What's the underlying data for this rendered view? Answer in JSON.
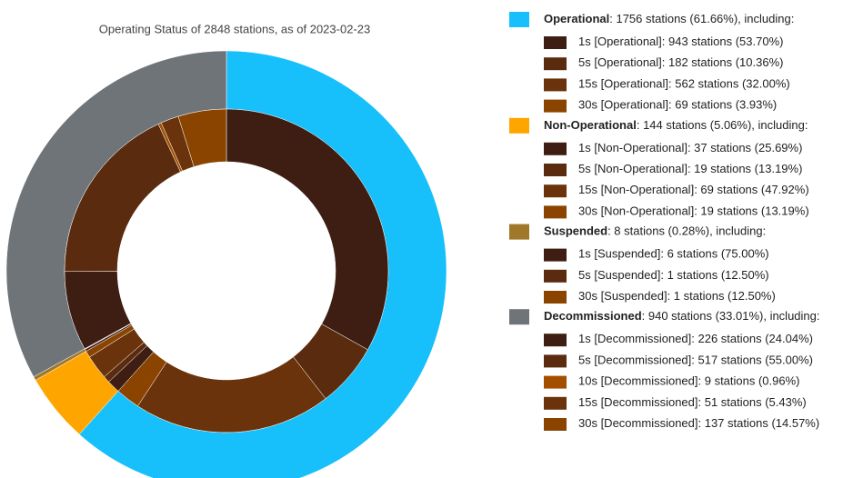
{
  "chart_data": {
    "type": "nested-donut",
    "title": "Operating Status of 2848 stations, as of 2023-02-23",
    "groups": [
      {
        "name": "Operational",
        "color": "#17bffb",
        "value": 1756,
        "label": ": 1756 stations (61.66%), including:",
        "children": [
          {
            "name": "1s [Operational]",
            "color": "#3e1e12",
            "value": 943,
            "label": ": 943 stations (53.70%)"
          },
          {
            "name": "5s [Operational]",
            "color": "#5a2b0e",
            "value": 182,
            "label": ": 182 stations (10.36%)"
          },
          {
            "name": "15s [Operational]",
            "color": "#6a330b",
            "value": 562,
            "label": ": 562 stations (32.00%)"
          },
          {
            "name": "30s [Operational]",
            "color": "#8a4400",
            "value": 69,
            "label": ": 69 stations (3.93%)"
          }
        ]
      },
      {
        "name": "Non-Operational",
        "color": "#ffa500",
        "value": 144,
        "label": ": 144 stations (5.06%), including:",
        "children": [
          {
            "name": "1s [Non-Operational]",
            "color": "#3e1e12",
            "value": 37,
            "label": ": 37 stations (25.69%)"
          },
          {
            "name": "5s [Non-Operational]",
            "color": "#5a2b0e",
            "value": 19,
            "label": ": 19 stations (13.19%)"
          },
          {
            "name": "15s [Non-Operational]",
            "color": "#6a330b",
            "value": 69,
            "label": ": 69 stations (47.92%)"
          },
          {
            "name": "30s [Non-Operational]",
            "color": "#8a4400",
            "value": 19,
            "label": ": 19 stations (13.19%)"
          }
        ]
      },
      {
        "name": "Suspended",
        "color": "#a0782a",
        "value": 8,
        "label": ": 8 stations (0.28%), including:",
        "children": [
          {
            "name": "1s [Suspended]",
            "color": "#3e1e12",
            "value": 6,
            "label": ": 6 stations (75.00%)"
          },
          {
            "name": "5s [Suspended]",
            "color": "#5a2b0e",
            "value": 1,
            "label": ": 1 stations (12.50%)"
          },
          {
            "name": "30s [Suspended]",
            "color": "#8a4400",
            "value": 1,
            "label": ": 1 stations (12.50%)"
          }
        ]
      },
      {
        "name": "Decommissioned",
        "color": "#6e7478",
        "value": 940,
        "label": ": 940 stations (33.01%), including:",
        "children": [
          {
            "name": "1s [Decommissioned]",
            "color": "#3e1e12",
            "value": 226,
            "label": ": 226 stations (24.04%)"
          },
          {
            "name": "5s [Decommissioned]",
            "color": "#5a2b0e",
            "value": 517,
            "label": ": 517 stations (55.00%)"
          },
          {
            "name": "10s [Decommissioned]",
            "color": "#a44f00",
            "value": 9,
            "label": ": 9 stations (0.96%)"
          },
          {
            "name": "15s [Decommissioned]",
            "color": "#6a330b",
            "value": 51,
            "label": ": 51 stations (5.43%)"
          },
          {
            "name": "30s [Decommissioned]",
            "color": "#8a4400",
            "value": 137,
            "label": ": 137 stations (14.57%)"
          }
        ]
      }
    ]
  }
}
